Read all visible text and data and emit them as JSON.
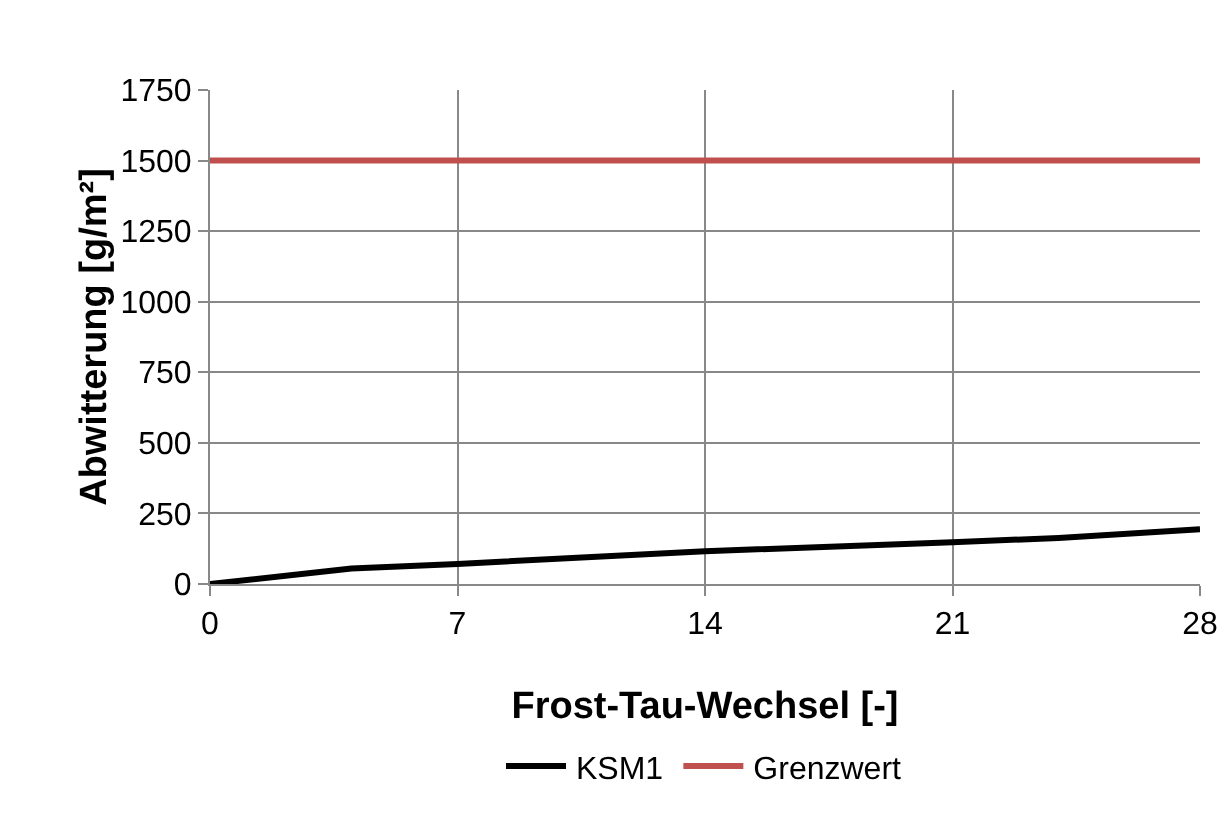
{
  "chart_data": {
    "type": "line",
    "xlabel": "Frost-Tau-Wechsel [-]",
    "ylabel": "Abwitterung [g/m²]",
    "x": [
      0,
      4,
      7,
      14,
      21,
      24,
      28
    ],
    "series": [
      {
        "name": "KSM1",
        "color": "#000000",
        "values": [
          0,
          55,
          71,
          116,
          148,
          163,
          194
        ]
      },
      {
        "name": "Grenzwert",
        "color": "#c0504d",
        "x": [
          0,
          28
        ],
        "values": [
          1500,
          1500
        ]
      }
    ],
    "xlim": [
      0,
      28
    ],
    "xticks": [
      0,
      7,
      14,
      21,
      28
    ],
    "ylim": [
      0,
      1750
    ],
    "yticks": [
      0,
      250,
      500,
      750,
      1000,
      1250,
      1500,
      1750
    ],
    "grid": true,
    "legend": "bottom",
    "marker": "none",
    "line_style": "solid"
  }
}
